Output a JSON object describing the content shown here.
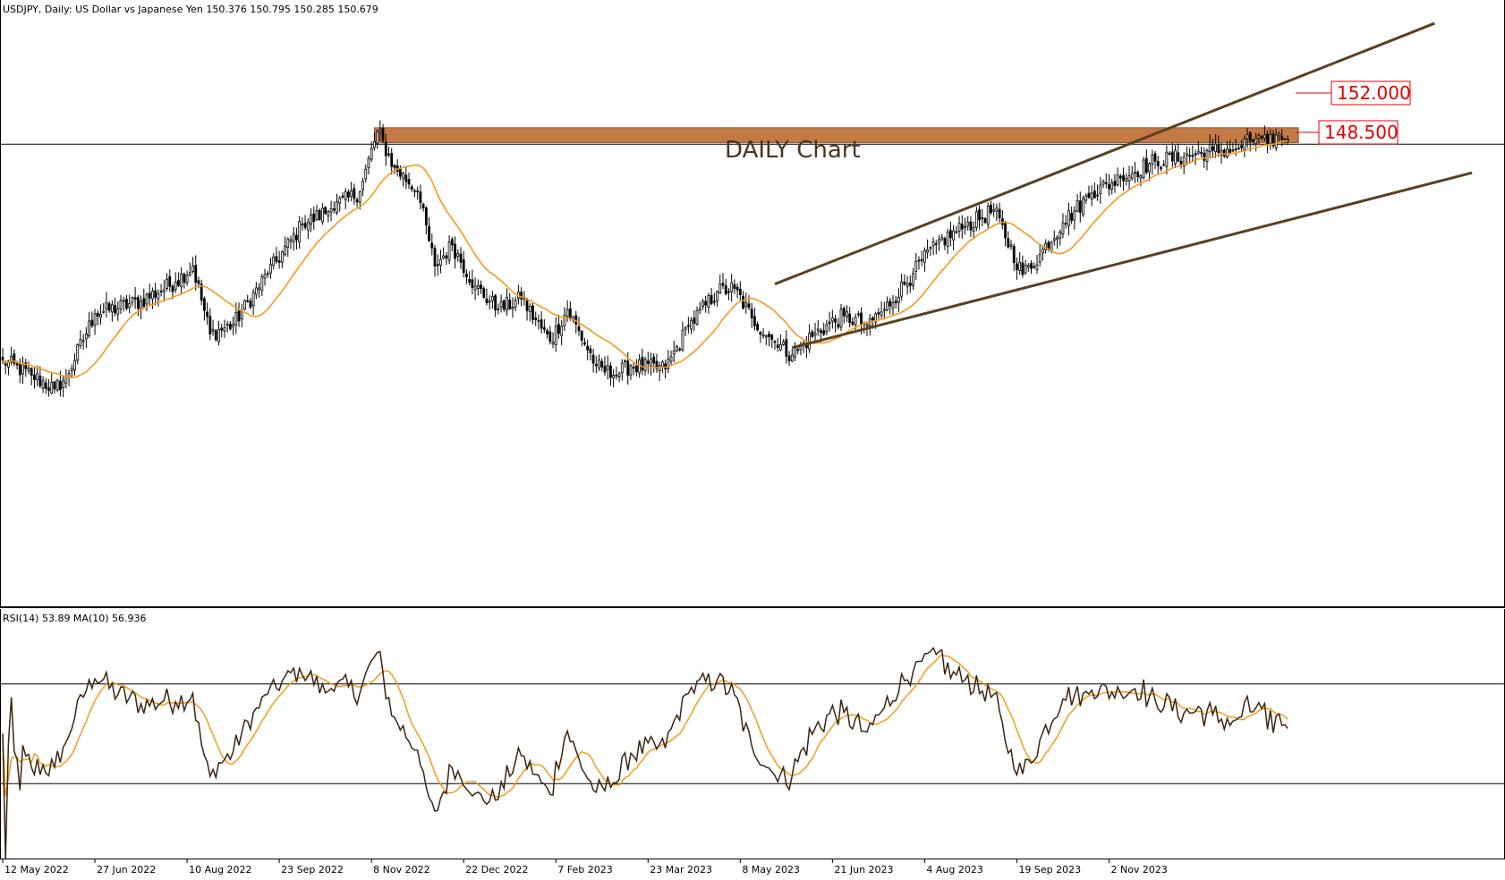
{
  "chart_data": [
    {
      "type": "candlestick",
      "title": "USDJPY, Daily:  US Dollar vs Japanese Yen  150.376 150.795 150.285 150.679",
      "annotation": "DAILY Chart",
      "levels": [
        {
          "label": "152.000",
          "value": 152.0
        },
        {
          "label": "148.500",
          "value": 148.5
        }
      ],
      "resistance_zone": [
        151.95,
        150.55
      ],
      "x_tick_labels": [
        "12 May 2022",
        "27 Jun 2022",
        "10 Aug 2022",
        "23 Sep 2022",
        "8 Nov 2022",
        "22 Dec 2022",
        "7 Feb 2023",
        "23 Mar 2023",
        "8 May 2023",
        "21 Jun 2023",
        "4 Aug 2023",
        "19 Sep 2023",
        "2 Nov 2023"
      ],
      "anchors": [
        [
          0,
          130.0
        ],
        [
          10,
          128.6
        ],
        [
          18,
          127.3
        ],
        [
          22,
          128.4
        ],
        [
          32,
          134.4
        ],
        [
          48,
          135.6
        ],
        [
          60,
          137.4
        ],
        [
          66,
          138.9
        ],
        [
          72,
          132.5
        ],
        [
          80,
          133.4
        ],
        [
          92,
          138.2
        ],
        [
          104,
          142.8
        ],
        [
          114,
          144.3
        ],
        [
          124,
          145.9
        ],
        [
          130,
          151.6
        ],
        [
          136,
          148.2
        ],
        [
          144,
          146.0
        ],
        [
          150,
          138.9
        ],
        [
          156,
          140.9
        ],
        [
          164,
          137.0
        ],
        [
          172,
          134.8
        ],
        [
          180,
          135.8
        ],
        [
          190,
          131.8
        ],
        [
          196,
          134.8
        ],
        [
          206,
          129.5
        ],
        [
          212,
          128.6
        ],
        [
          218,
          129.5
        ],
        [
          230,
          129.2
        ],
        [
          238,
          133.2
        ],
        [
          248,
          136.5
        ],
        [
          254,
          136.8
        ],
        [
          260,
          134.0
        ],
        [
          268,
          131.7
        ],
        [
          274,
          130.5
        ],
        [
          282,
          132.6
        ],
        [
          292,
          134.2
        ],
        [
          300,
          133.4
        ],
        [
          306,
          134.8
        ],
        [
          316,
          138.2
        ],
        [
          324,
          141.0
        ],
        [
          334,
          142.6
        ],
        [
          344,
          144.2
        ],
        [
          354,
          138.1
        ],
        [
          360,
          140.0
        ],
        [
          368,
          143.0
        ],
        [
          378,
          145.8
        ],
        [
          388,
          147.2
        ],
        [
          400,
          148.8
        ],
        [
          410,
          149.2
        ],
        [
          420,
          149.8
        ],
        [
          428,
          149.9
        ],
        [
          436,
          151.2
        ],
        [
          439,
          150.3
        ],
        [
          443,
          151.4
        ],
        [
          446,
          150.7
        ]
      ],
      "ma_period": 20,
      "y_range": [
        164.0,
        106.8
      ],
      "channel": {
        "upper": [
          [
            268,
            137.2
          ],
          [
            497,
            161.8
          ]
        ],
        "lower": [
          [
            274,
            131.2
          ],
          [
            510,
            147.7
          ]
        ]
      }
    },
    {
      "type": "line",
      "title": "RSI(14) 53.89 MA(10) 56.936",
      "levels": [
        70,
        30
      ],
      "y_range": [
        100,
        0
      ]
    }
  ]
}
